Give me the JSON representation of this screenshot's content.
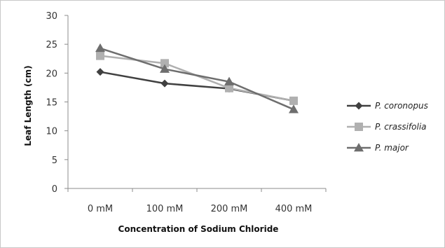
{
  "chart_data": {
    "type": "line",
    "title": "",
    "xlabel": "Concentration of Sodium Chloride",
    "ylabel": "Leaf Length (cm)",
    "categories": [
      "0 mM",
      "100 mM",
      "200 mM",
      "400 mM"
    ],
    "ylim": [
      0,
      30
    ],
    "yticks": [
      "0",
      "5",
      "10",
      "15",
      "20",
      "25",
      "30"
    ],
    "grid": false,
    "legend_position": "right",
    "series": [
      {
        "name": "P. coronopus",
        "values": [
          20.2,
          18.2,
          17.3,
          15.2
        ],
        "color": "#404040",
        "marker": "diamond"
      },
      {
        "name": "P. crassifolia",
        "values": [
          23.0,
          21.7,
          17.4,
          15.2
        ],
        "color": "#b0b0b0",
        "marker": "square"
      },
      {
        "name": "P. major",
        "values": [
          24.3,
          20.7,
          18.5,
          13.7
        ],
        "color": "#6e6e6e",
        "marker": "triangle"
      }
    ]
  }
}
